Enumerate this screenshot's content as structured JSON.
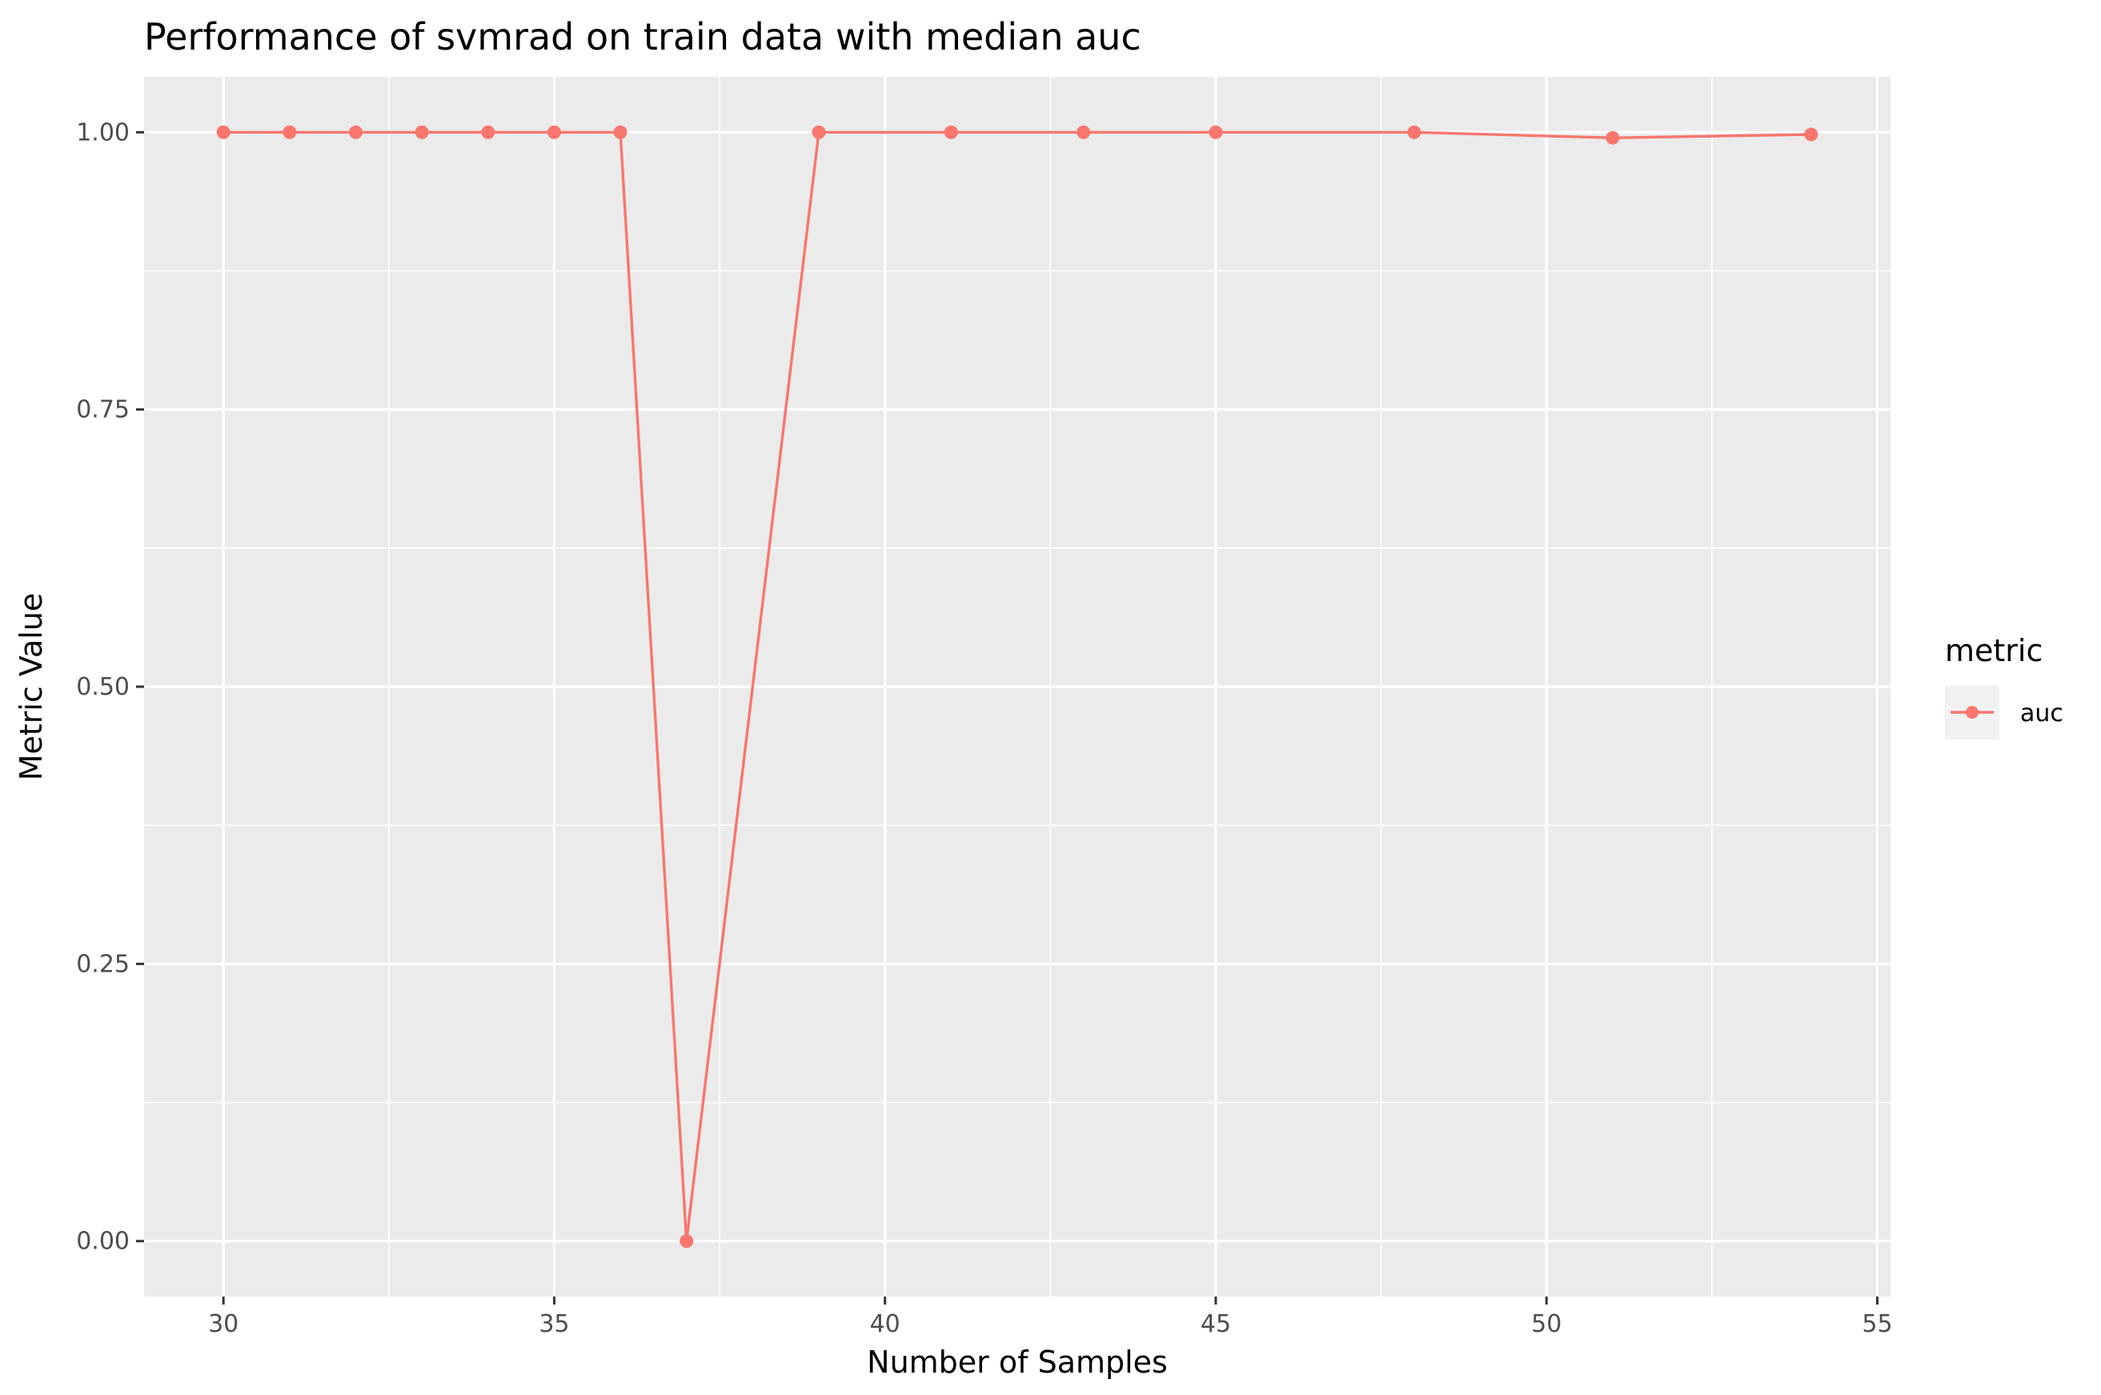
{
  "chart_data": {
    "type": "line",
    "title": "Performance of svmrad on train data with median auc",
    "xlabel": "Number of Samples",
    "ylabel": "Metric Value",
    "xlim": [
      28.8,
      55.2
    ],
    "ylim": [
      -0.05,
      1.05
    ],
    "x_ticks": [
      30,
      35,
      40,
      45,
      50,
      55
    ],
    "x_tick_labels": [
      "30",
      "35",
      "40",
      "45",
      "50",
      "55"
    ],
    "x_minor_ticks": [
      32.5,
      37.5,
      42.5,
      47.5,
      52.5
    ],
    "y_ticks": [
      0,
      0.25,
      0.5,
      0.75,
      1.0
    ],
    "y_tick_labels": [
      "0.00",
      "0.25",
      "0.50",
      "0.75",
      "1.00"
    ],
    "y_minor_ticks": [
      0.125,
      0.375,
      0.625,
      0.875
    ],
    "grid": true,
    "legend": {
      "title": "metric",
      "position": "right"
    },
    "series": [
      {
        "name": "auc",
        "color": "#F8766D",
        "x": [
          30,
          31,
          32,
          33,
          34,
          35,
          36,
          37,
          39,
          41,
          43,
          45,
          48,
          51,
          54
        ],
        "values": [
          1.0,
          1.0,
          1.0,
          1.0,
          1.0,
          1.0,
          1.0,
          0.0,
          1.0,
          1.0,
          1.0,
          1.0,
          1.0,
          0.995,
          0.998
        ]
      }
    ]
  }
}
